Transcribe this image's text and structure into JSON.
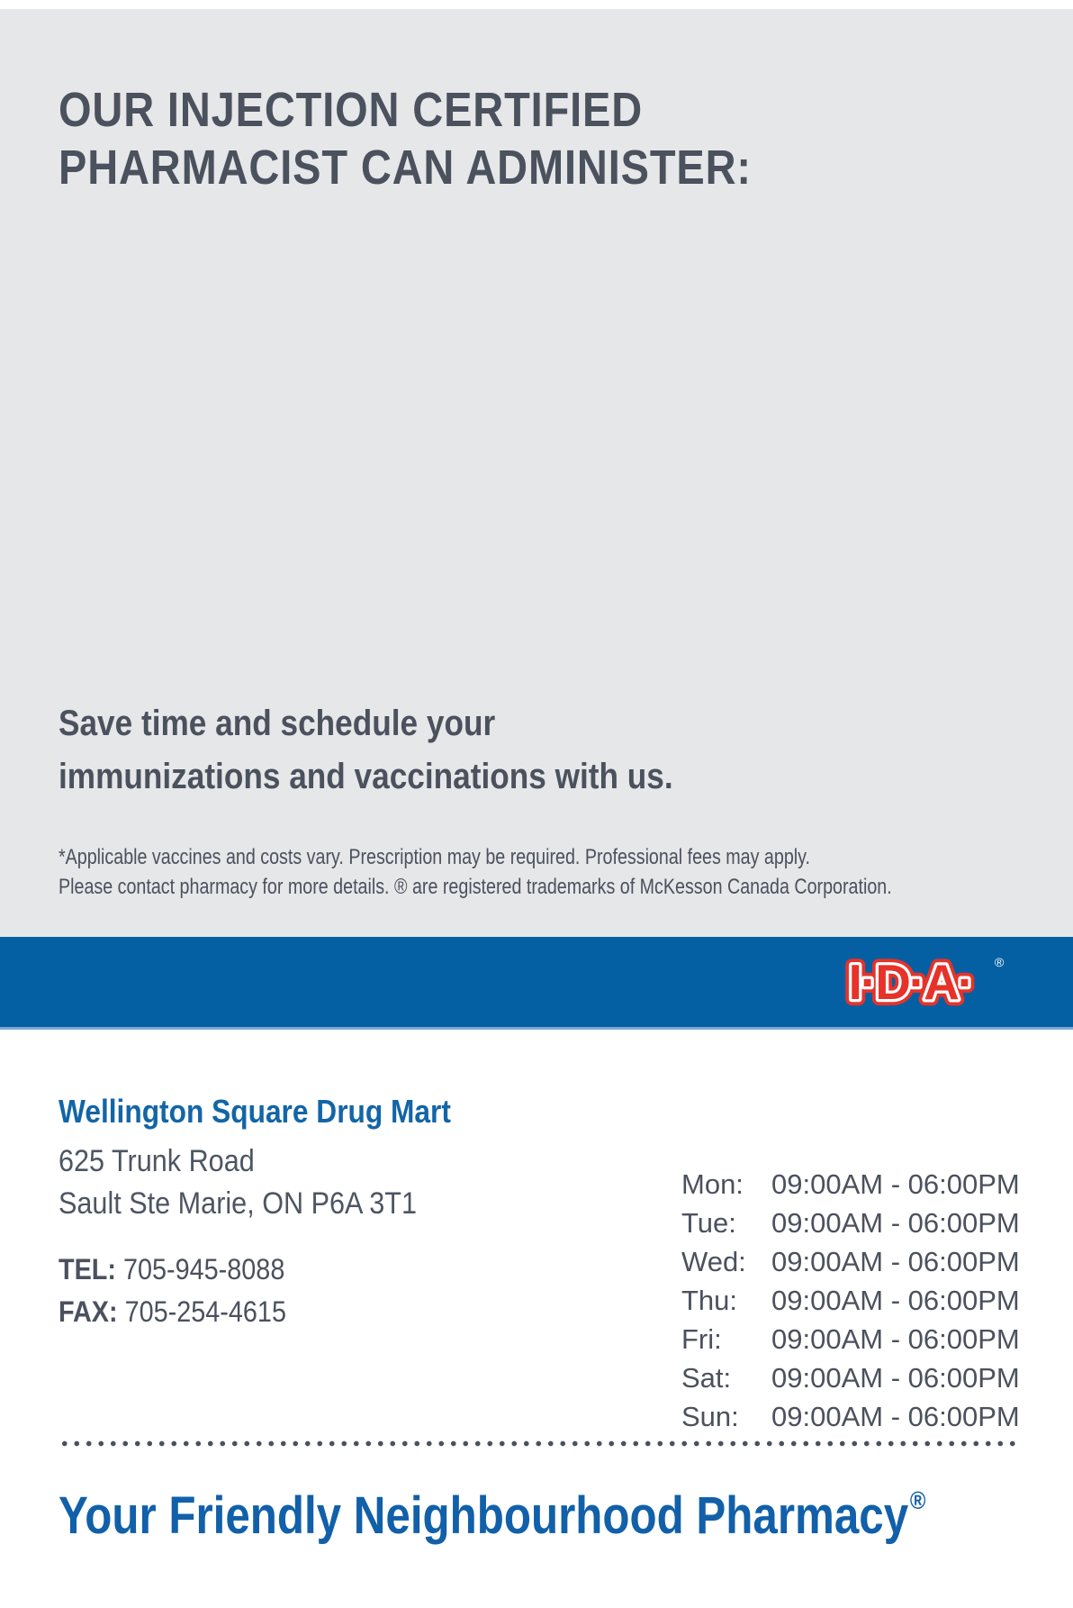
{
  "header": {
    "line1": "OUR INJECTION CERTIFIED",
    "line2": "PHARMACIST CAN ADMINISTER:"
  },
  "promo": {
    "line1": "Save time and schedule your",
    "line2": "immunizations and vaccinations with us."
  },
  "disclaimer": {
    "line1": "*Applicable vaccines and costs vary. Prescription may be required. Professional fees may apply.",
    "line2": "Please contact pharmacy for more details. ® are registered trademarks of McKesson Canada Corporation."
  },
  "brand": {
    "logo_text": "I·D·A·",
    "registered": "®"
  },
  "store": {
    "name": "Wellington Square Drug Mart",
    "address_line1": "625 Trunk Road",
    "address_line2": "Sault Ste Marie, ON P6A 3T1",
    "tel_label": "TEL:",
    "tel_number": "705-945-8088",
    "fax_label": "FAX:",
    "fax_number": "705-254-4615"
  },
  "hours": [
    {
      "day": "Mon:",
      "time": "09:00AM - 06:00PM"
    },
    {
      "day": "Tue:",
      "time": "09:00AM - 06:00PM"
    },
    {
      "day": "Wed:",
      "time": "09:00AM - 06:00PM"
    },
    {
      "day": "Thu:",
      "time": "09:00AM - 06:00PM"
    },
    {
      "day": "Fri:",
      "time": "09:00AM - 06:00PM"
    },
    {
      "day": "Sat:",
      "time": "09:00AM - 06:00PM"
    },
    {
      "day": "Sun:",
      "time": "09:00AM - 06:00PM"
    }
  ],
  "tagline": {
    "text": "Your Friendly Neighbourhood Pharmacy",
    "registered": "®"
  },
  "colors": {
    "background_gray": "#e6e7e9",
    "brand_blue": "#0560a3",
    "brand_red": "#e63229",
    "accent_light_blue": "#7aa9d6",
    "heading_slate": "#4b515d",
    "store_blue": "#1365a6",
    "tagline_blue": "#1160a9"
  }
}
